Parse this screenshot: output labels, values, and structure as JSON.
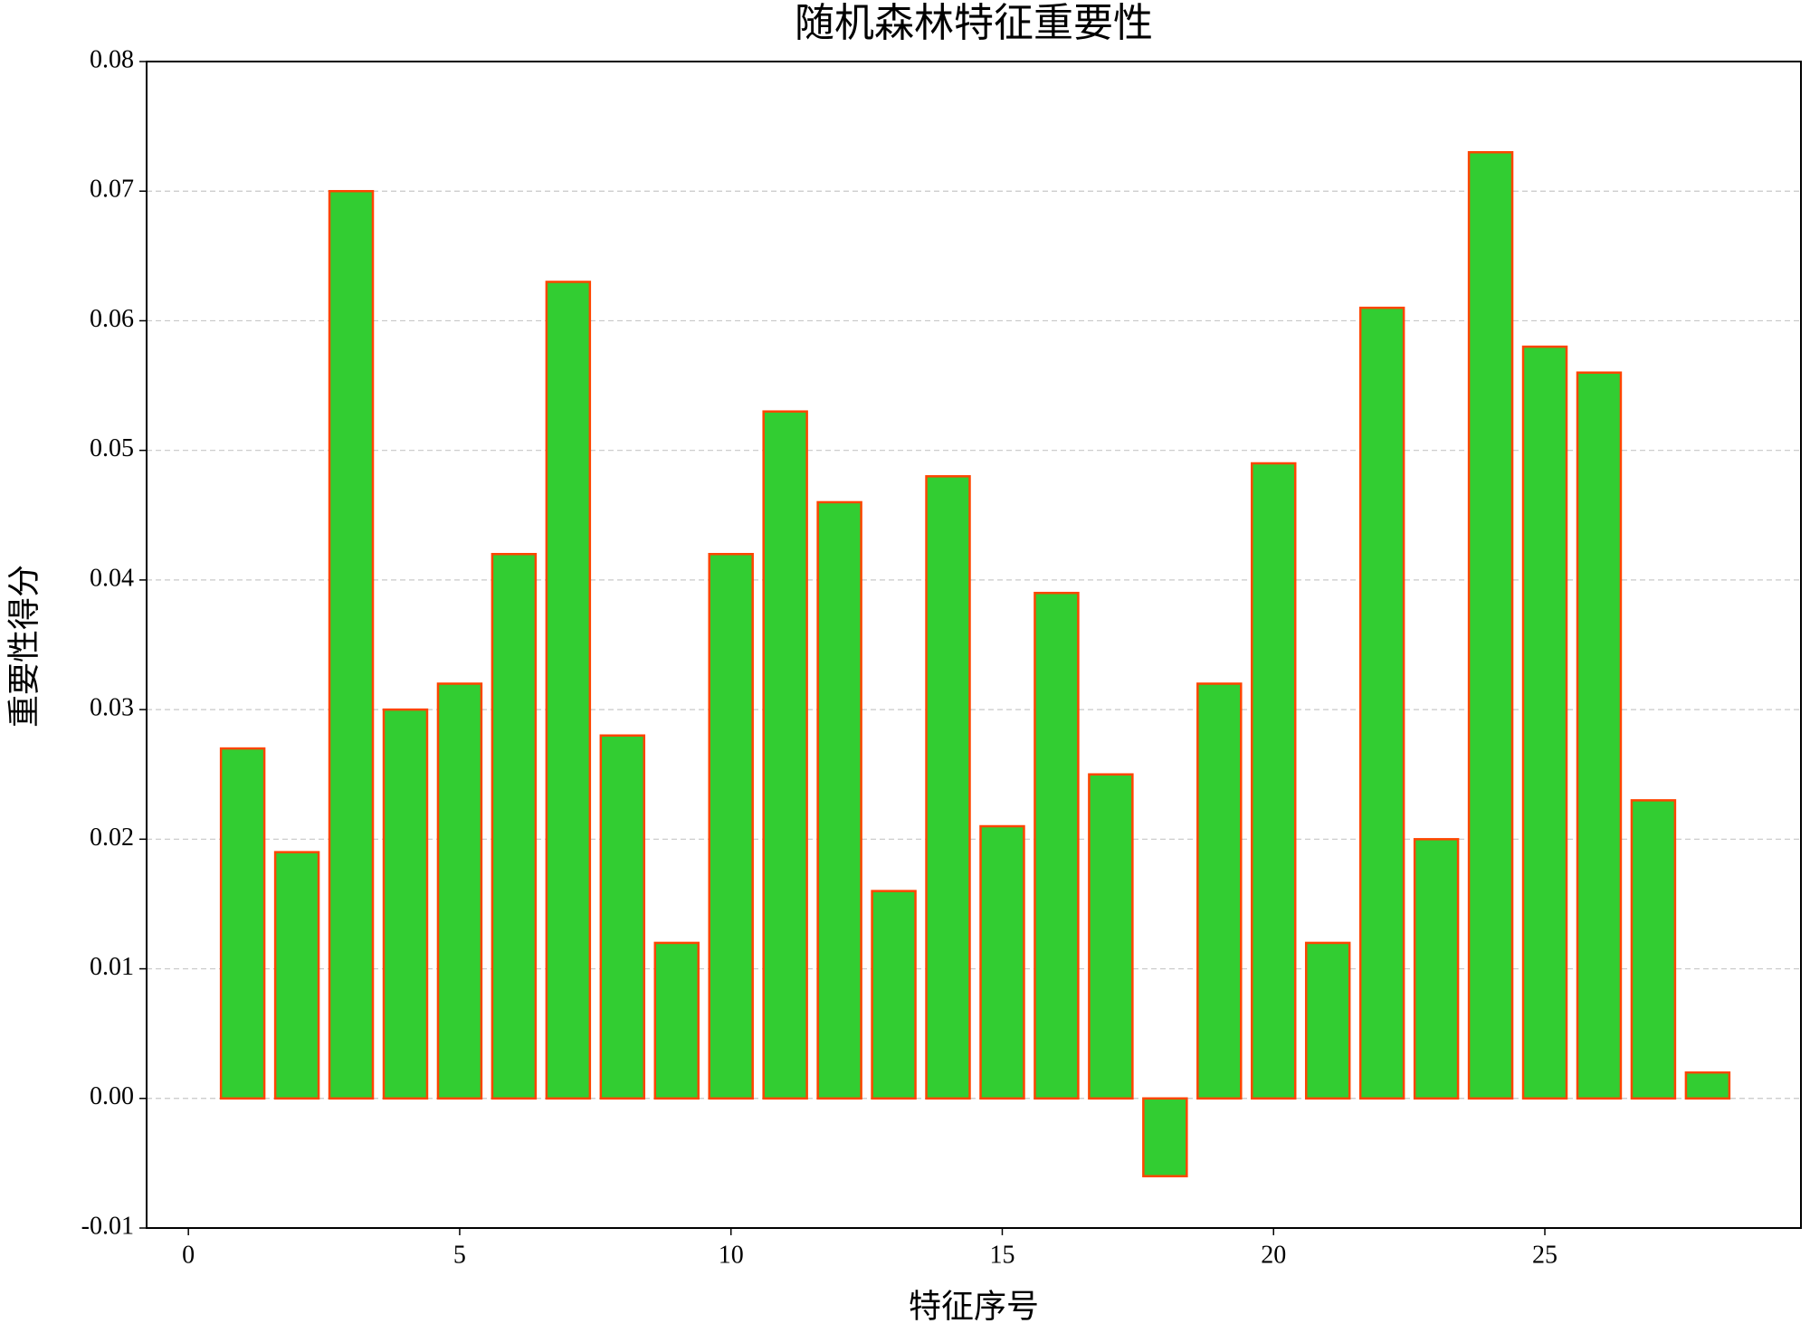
{
  "chart_data": {
    "type": "bar",
    "title": "随机森林特征重要性",
    "x_label": "特征序号",
    "y_label": "重要性得分",
    "x": [
      1,
      2,
      3,
      4,
      5,
      6,
      7,
      8,
      9,
      10,
      11,
      12,
      13,
      14,
      15,
      16,
      17,
      18,
      19,
      20,
      21,
      22,
      23,
      24,
      25,
      26,
      27,
      28
    ],
    "values": [
      0.027,
      0.019,
      0.07,
      0.03,
      0.032,
      0.042,
      0.063,
      0.028,
      0.012,
      0.042,
      0.053,
      0.046,
      0.016,
      0.048,
      0.021,
      0.039,
      0.025,
      -0.006,
      0.032,
      0.049,
      0.012,
      0.061,
      0.02,
      0.073,
      0.058,
      0.056,
      0.023,
      0.002
    ],
    "color": "#32cd32",
    "edgecolor": "#ff4500",
    "xlim": [
      -0.77,
      29.72
    ],
    "xticks": [
      0,
      5,
      10,
      15,
      20,
      25
    ],
    "ylim": [
      -0.01,
      0.08
    ],
    "yticks": [
      -0.01,
      {
        "value": 0,
        "label": "0.00"
      },
      0.01,
      0.02,
      0.03,
      0.04,
      0.05,
      0.06,
      0.07,
      0.08
    ],
    "grid": "y"
  }
}
